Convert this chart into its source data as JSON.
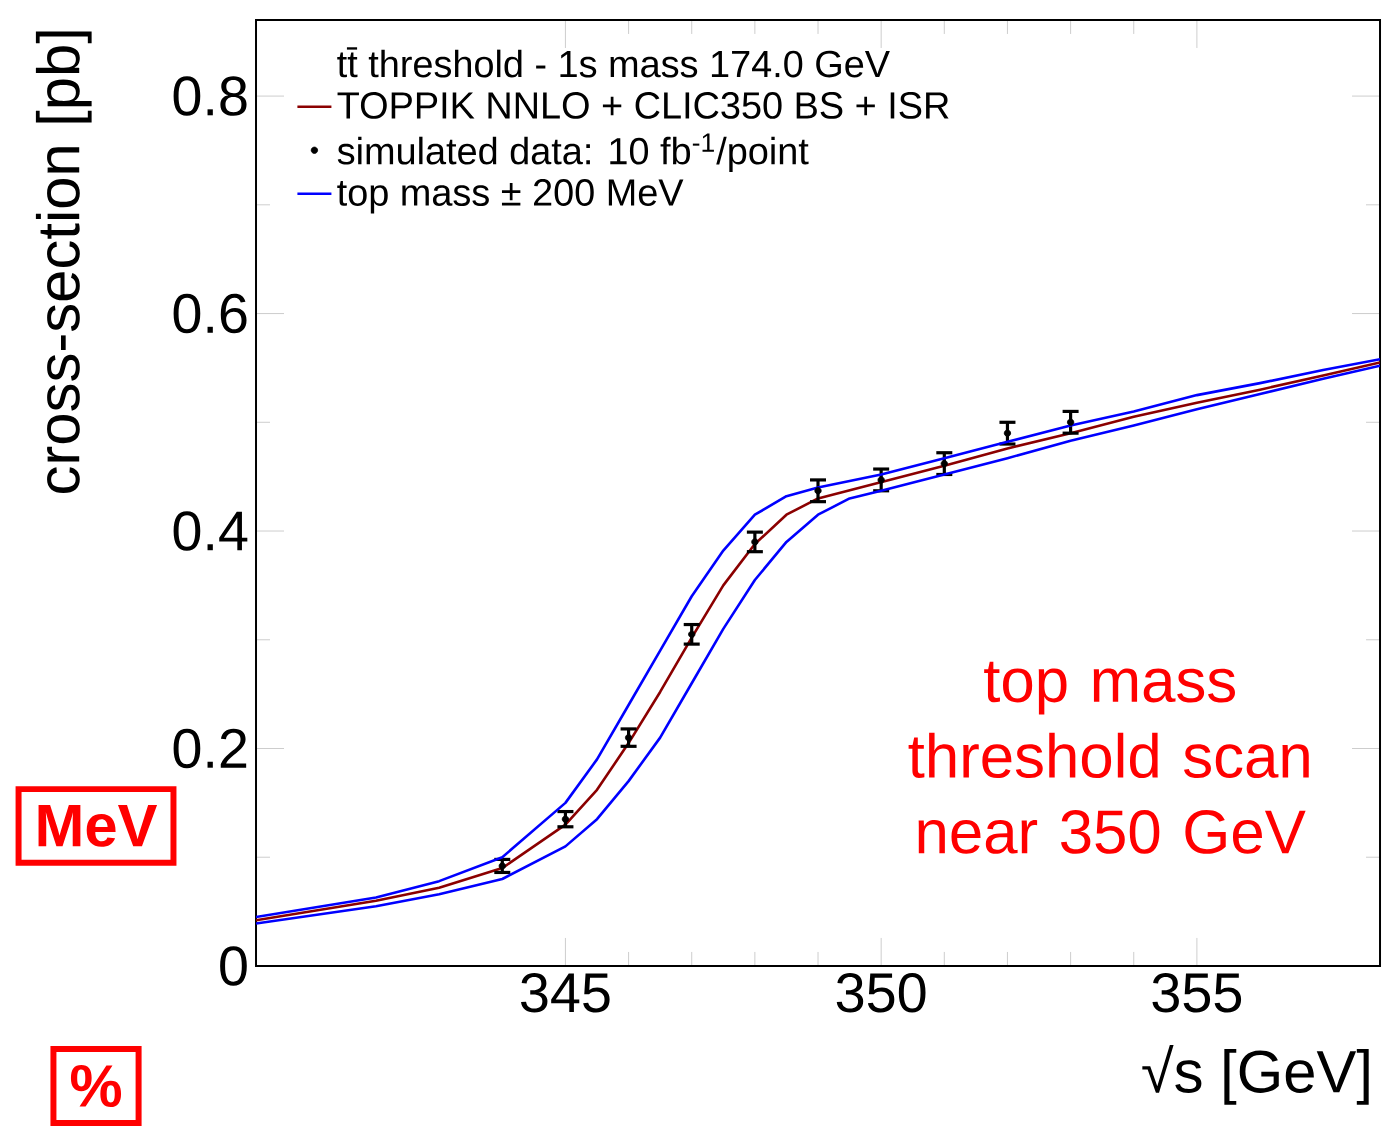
{
  "chart_data": {
    "type": "line",
    "xlabel": "√s [GeV]",
    "ylabel": "cross-section [pb]",
    "legend_title": "tt̄ threshold - 1s mass 174.0 GeV",
    "xlim": [
      340.1,
      357.9
    ],
    "ylim": [
      0,
      0.87
    ],
    "xticks": [
      345,
      350,
      355
    ],
    "yticks": [
      0,
      0.2,
      0.4,
      0.6,
      0.8
    ],
    "legend": "top left",
    "line_style": "solid",
    "series": [
      {
        "name": "TOPPIK NNLO + CLIC350 BS + ISR",
        "color": "#8b0000",
        "x": [
          340.1,
          342,
          343,
          344,
          345,
          345.5,
          346,
          346.5,
          347,
          347.5,
          348,
          348.5,
          349,
          350,
          351,
          352,
          353,
          354,
          355,
          356,
          357,
          357.9
        ],
        "values": [
          0.042,
          0.06,
          0.072,
          0.09,
          0.13,
          0.162,
          0.205,
          0.252,
          0.302,
          0.35,
          0.388,
          0.415,
          0.43,
          0.445,
          0.46,
          0.476,
          0.49,
          0.505,
          0.518,
          0.53,
          0.543,
          0.555
        ]
      },
      {
        "name": "simulated data: 10 fb$^{-1}$/point",
        "color": "#000000",
        "type": "scatter",
        "x": [
          344,
          345,
          346,
          347,
          348,
          349,
          350,
          351,
          352,
          353
        ],
        "values": [
          0.092,
          0.135,
          0.21,
          0.305,
          0.39,
          0.437,
          0.447,
          0.462,
          0.49,
          0.5
        ],
        "errors": [
          0.006,
          0.007,
          0.008,
          0.009,
          0.009,
          0.01,
          0.01,
          0.01,
          0.01,
          0.01
        ]
      },
      {
        "name": "top mass ± 200 MeV",
        "color": "#0000ff",
        "x": [
          340.1,
          342,
          343,
          344,
          345,
          345.5,
          346,
          346.5,
          347,
          347.5,
          348,
          348.5,
          349,
          350,
          351,
          352,
          353,
          354,
          355,
          356,
          357,
          357.9
        ],
        "values": [
          0.045,
          0.063,
          0.078,
          0.1,
          0.15,
          0.19,
          0.24,
          0.29,
          0.34,
          0.382,
          0.415,
          0.432,
          0.44,
          0.452,
          0.467,
          0.482,
          0.497,
          0.51,
          0.525,
          0.536,
          0.548,
          0.558
        ]
      },
      {
        "color": "#0000ff",
        "x": [
          340.1,
          342,
          343,
          344,
          345,
          345.5,
          346,
          346.5,
          347,
          347.5,
          348,
          348.5,
          349,
          349.5,
          350,
          351,
          352,
          353,
          354,
          355,
          356,
          357,
          357.9
        ],
        "values": [
          0.039,
          0.055,
          0.066,
          0.08,
          0.11,
          0.135,
          0.17,
          0.21,
          0.26,
          0.31,
          0.355,
          0.39,
          0.415,
          0.43,
          0.437,
          0.452,
          0.467,
          0.483,
          0.497,
          0.512,
          0.526,
          0.54,
          0.552
        ]
      }
    ],
    "annotations": [
      "top mass threshold scan near 350 GeV",
      "MeV",
      "%"
    ]
  }
}
